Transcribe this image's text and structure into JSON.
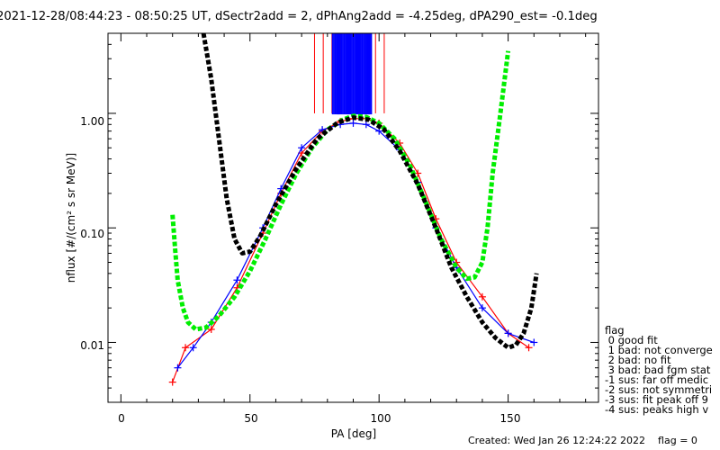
{
  "chart_data": {
    "type": "line",
    "title": "2021-12-28/08:44:23 - 08:50:25 UT, dSectr2add = 2, dPhAng2add = -4.25deg, dPA290_est=  -0.1deg",
    "xlabel": "PA [deg]",
    "ylabel": "nflux [#/(cm² s sr MeV)]",
    "xlim": [
      -5,
      185
    ],
    "ylim": [
      0.003,
      5.0
    ],
    "yscale": "log",
    "xticks": [
      "0",
      "50",
      "100",
      "150"
    ],
    "yticks": [
      "0.01",
      "0.10",
      "1.00"
    ],
    "series": [
      {
        "color": "#ff0000",
        "marker": "+",
        "values": [
          [
            20,
            0.0045
          ],
          [
            25,
            0.009
          ],
          [
            35,
            0.013
          ],
          [
            45,
            0.03
          ],
          [
            55,
            0.09
          ],
          [
            62,
            0.2
          ],
          [
            70,
            0.45
          ],
          [
            78,
            0.7
          ],
          [
            85,
            0.85
          ],
          [
            90,
            0.9
          ],
          [
            95,
            0.9
          ],
          [
            100,
            0.82
          ],
          [
            108,
            0.55
          ],
          [
            115,
            0.3
          ],
          [
            122,
            0.12
          ],
          [
            130,
            0.05
          ],
          [
            140,
            0.025
          ],
          [
            150,
            0.012
          ],
          [
            158,
            0.009
          ]
        ]
      },
      {
        "color": "#0000ff",
        "marker": "+",
        "values": [
          [
            22,
            0.006
          ],
          [
            28,
            0.009
          ],
          [
            35,
            0.015
          ],
          [
            45,
            0.035
          ],
          [
            55,
            0.1
          ],
          [
            62,
            0.22
          ],
          [
            70,
            0.5
          ],
          [
            78,
            0.72
          ],
          [
            85,
            0.8
          ],
          [
            90,
            0.82
          ],
          [
            95,
            0.8
          ],
          [
            100,
            0.7
          ],
          [
            108,
            0.48
          ],
          [
            115,
            0.25
          ],
          [
            122,
            0.1
          ],
          [
            130,
            0.045
          ],
          [
            140,
            0.02
          ],
          [
            150,
            0.012
          ],
          [
            160,
            0.01
          ]
        ]
      },
      {
        "color": "#00ee00",
        "style": "thick dashed",
        "values": [
          [
            20,
            0.13
          ],
          [
            21,
            0.065
          ],
          [
            22,
            0.035
          ],
          [
            24,
            0.02
          ],
          [
            26,
            0.015
          ],
          [
            29,
            0.013
          ],
          [
            33,
            0.0135
          ],
          [
            38,
            0.017
          ],
          [
            44,
            0.025
          ],
          [
            50,
            0.042
          ],
          [
            56,
            0.08
          ],
          [
            62,
            0.16
          ],
          [
            68,
            0.3
          ],
          [
            74,
            0.5
          ],
          [
            80,
            0.72
          ],
          [
            86,
            0.88
          ],
          [
            90,
            0.95
          ],
          [
            95,
            0.93
          ],
          [
            100,
            0.82
          ],
          [
            106,
            0.6
          ],
          [
            112,
            0.35
          ],
          [
            118,
            0.17
          ],
          [
            124,
            0.08
          ],
          [
            130,
            0.045
          ],
          [
            134,
            0.036
          ],
          [
            137,
            0.037
          ],
          [
            140,
            0.05
          ],
          [
            142,
            0.1
          ],
          [
            144,
            0.3
          ],
          [
            147,
            1.0
          ],
          [
            150,
            3.5
          ]
        ]
      },
      {
        "color": "#000000",
        "style": "thick dashed",
        "values": [
          [
            32,
            5.0
          ],
          [
            35,
            2.0
          ],
          [
            38,
            0.6
          ],
          [
            41,
            0.18
          ],
          [
            44,
            0.08
          ],
          [
            47,
            0.06
          ],
          [
            50,
            0.062
          ],
          [
            54,
            0.085
          ],
          [
            60,
            0.16
          ],
          [
            68,
            0.33
          ],
          [
            76,
            0.6
          ],
          [
            84,
            0.83
          ],
          [
            90,
            0.92
          ],
          [
            96,
            0.88
          ],
          [
            102,
            0.72
          ],
          [
            108,
            0.47
          ],
          [
            115,
            0.24
          ],
          [
            122,
            0.1
          ],
          [
            128,
            0.045
          ],
          [
            134,
            0.025
          ],
          [
            140,
            0.015
          ],
          [
            145,
            0.011
          ],
          [
            150,
            0.009
          ],
          [
            153,
            0.0095
          ],
          [
            156,
            0.012
          ],
          [
            159,
            0.02
          ],
          [
            161,
            0.04
          ]
        ]
      }
    ],
    "envelope": {
      "red": {
        "x_min": 75,
        "x_max": 102
      },
      "blue": {
        "x_min": 82,
        "x_max": 97
      }
    },
    "legend_placement": "right",
    "legend": {
      "header": "flag",
      "items": [
        " 0 good fit",
        " 1 bad: not converge",
        " 2 bad: no fit",
        " 3 bad: bad fgm stat",
        "-1 sus: far off medic",
        "-2 sus: not symmetri",
        "-3 sus: fit peak off 9",
        "-4 sus: peaks high v"
      ]
    },
    "footer": "Created: Wed Jan 26 12:24:22 2022    flag = 0"
  }
}
